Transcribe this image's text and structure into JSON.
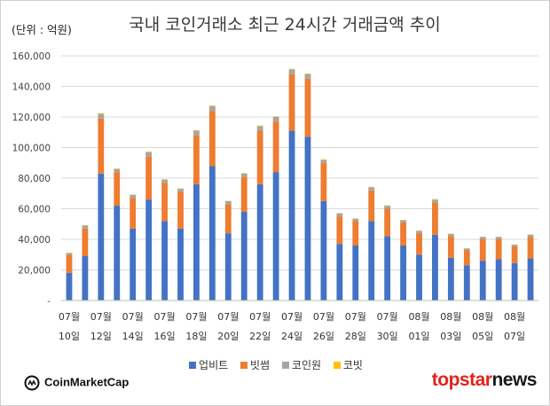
{
  "unit_label": "(단위 : 억원)",
  "brand": {
    "left": "CoinMarketCap",
    "right_a": "topstar",
    "right_b": "news"
  },
  "chart_data": {
    "type": "bar",
    "stacked": true,
    "title": "국내 코인거래소 최근 24시간 거래금액 추이",
    "xlabel": "",
    "ylabel": "",
    "ylim": [
      0,
      160000
    ],
    "yticks": [
      "-",
      "20,000",
      "40,000",
      "60,000",
      "80,000",
      "100,000",
      "120,000",
      "140,000",
      "160,000"
    ],
    "grid": true,
    "legend_position": "bottom",
    "tick_labels": [
      {
        "month": "07월",
        "day": "10일"
      },
      {
        "month": "07월",
        "day": "12일"
      },
      {
        "month": "07월",
        "day": "14일"
      },
      {
        "month": "07월",
        "day": "16일"
      },
      {
        "month": "07월",
        "day": "18일"
      },
      {
        "month": "07월",
        "day": "20일"
      },
      {
        "month": "07월",
        "day": "22일"
      },
      {
        "month": "07월",
        "day": "24일"
      },
      {
        "month": "07월",
        "day": "26일"
      },
      {
        "month": "07월",
        "day": "28일"
      },
      {
        "month": "07월",
        "day": "30일"
      },
      {
        "month": "08월",
        "day": "01일"
      },
      {
        "month": "08월",
        "day": "03일"
      },
      {
        "month": "08월",
        "day": "05일"
      },
      {
        "month": "08월",
        "day": "07일"
      }
    ],
    "series": [
      {
        "name": "업비트",
        "color": "#4472c4",
        "values": [
          18000,
          29000,
          83000,
          62000,
          47000,
          66000,
          52000,
          47000,
          76000,
          88000,
          44000,
          58000,
          76000,
          84000,
          111000,
          107000,
          65000,
          37000,
          36000,
          52000,
          42000,
          36000,
          30000,
          43000,
          28000,
          23000,
          26000,
          27000,
          24500,
          27500
        ]
      },
      {
        "name": "빗썸",
        "color": "#ed7d31",
        "values": [
          12000,
          18000,
          36000,
          22000,
          20000,
          28000,
          25000,
          24000,
          32000,
          36000,
          19000,
          23000,
          35000,
          33000,
          37000,
          38000,
          25000,
          18000,
          16000,
          20000,
          18000,
          15000,
          14000,
          21000,
          14000,
          10000,
          14000,
          13000,
          11000,
          14000
        ]
      },
      {
        "name": "코인원",
        "color": "#a5a5a5",
        "values": [
          1000,
          2000,
          3000,
          2000,
          2000,
          3000,
          2000,
          2000,
          3000,
          3000,
          2000,
          2000,
          3000,
          3000,
          3000,
          3000,
          2000,
          2000,
          1500,
          2000,
          2000,
          1500,
          1500,
          2000,
          1500,
          1000,
          1500,
          1500,
          1000,
          1500
        ]
      },
      {
        "name": "코빗",
        "color": "#ffc000",
        "values": [
          200,
          300,
          500,
          300,
          300,
          400,
          300,
          300,
          400,
          500,
          200,
          300,
          400,
          400,
          500,
          500,
          300,
          200,
          200,
          300,
          200,
          200,
          200,
          300,
          200,
          150,
          200,
          200,
          150,
          200
        ]
      }
    ]
  }
}
